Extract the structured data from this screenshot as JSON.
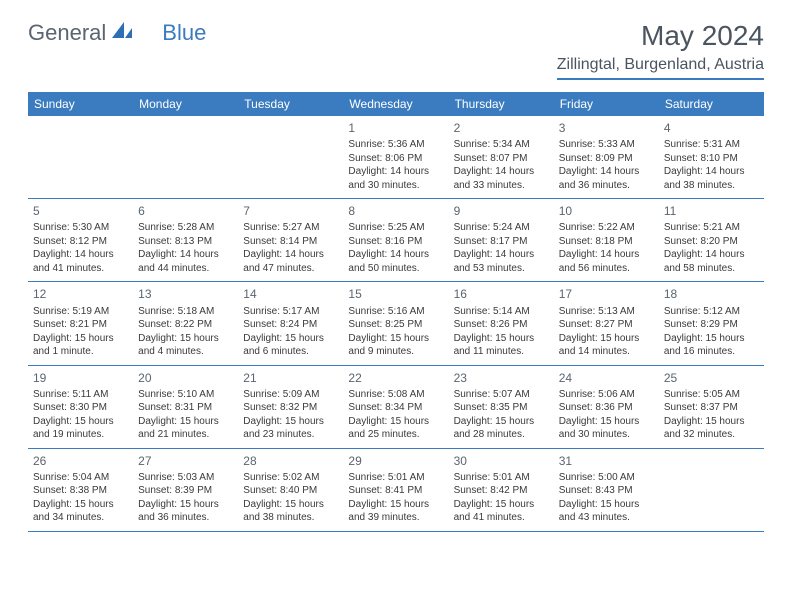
{
  "logo": {
    "text_general": "General",
    "text_blue": "Blue"
  },
  "title": "May 2024",
  "location": "Zillingtal, Burgenland, Austria",
  "colors": {
    "header_bg": "#3b7bbf",
    "text": "#4a5560"
  },
  "weekdays": [
    "Sunday",
    "Monday",
    "Tuesday",
    "Wednesday",
    "Thursday",
    "Friday",
    "Saturday"
  ],
  "weeks": [
    [
      {
        "n": "",
        "sr": "",
        "ss": "",
        "dl": ""
      },
      {
        "n": "",
        "sr": "",
        "ss": "",
        "dl": ""
      },
      {
        "n": "",
        "sr": "",
        "ss": "",
        "dl": ""
      },
      {
        "n": "1",
        "sr": "Sunrise: 5:36 AM",
        "ss": "Sunset: 8:06 PM",
        "dl": "Daylight: 14 hours and 30 minutes."
      },
      {
        "n": "2",
        "sr": "Sunrise: 5:34 AM",
        "ss": "Sunset: 8:07 PM",
        "dl": "Daylight: 14 hours and 33 minutes."
      },
      {
        "n": "3",
        "sr": "Sunrise: 5:33 AM",
        "ss": "Sunset: 8:09 PM",
        "dl": "Daylight: 14 hours and 36 minutes."
      },
      {
        "n": "4",
        "sr": "Sunrise: 5:31 AM",
        "ss": "Sunset: 8:10 PM",
        "dl": "Daylight: 14 hours and 38 minutes."
      }
    ],
    [
      {
        "n": "5",
        "sr": "Sunrise: 5:30 AM",
        "ss": "Sunset: 8:12 PM",
        "dl": "Daylight: 14 hours and 41 minutes."
      },
      {
        "n": "6",
        "sr": "Sunrise: 5:28 AM",
        "ss": "Sunset: 8:13 PM",
        "dl": "Daylight: 14 hours and 44 minutes."
      },
      {
        "n": "7",
        "sr": "Sunrise: 5:27 AM",
        "ss": "Sunset: 8:14 PM",
        "dl": "Daylight: 14 hours and 47 minutes."
      },
      {
        "n": "8",
        "sr": "Sunrise: 5:25 AM",
        "ss": "Sunset: 8:16 PM",
        "dl": "Daylight: 14 hours and 50 minutes."
      },
      {
        "n": "9",
        "sr": "Sunrise: 5:24 AM",
        "ss": "Sunset: 8:17 PM",
        "dl": "Daylight: 14 hours and 53 minutes."
      },
      {
        "n": "10",
        "sr": "Sunrise: 5:22 AM",
        "ss": "Sunset: 8:18 PM",
        "dl": "Daylight: 14 hours and 56 minutes."
      },
      {
        "n": "11",
        "sr": "Sunrise: 5:21 AM",
        "ss": "Sunset: 8:20 PM",
        "dl": "Daylight: 14 hours and 58 minutes."
      }
    ],
    [
      {
        "n": "12",
        "sr": "Sunrise: 5:19 AM",
        "ss": "Sunset: 8:21 PM",
        "dl": "Daylight: 15 hours and 1 minute."
      },
      {
        "n": "13",
        "sr": "Sunrise: 5:18 AM",
        "ss": "Sunset: 8:22 PM",
        "dl": "Daylight: 15 hours and 4 minutes."
      },
      {
        "n": "14",
        "sr": "Sunrise: 5:17 AM",
        "ss": "Sunset: 8:24 PM",
        "dl": "Daylight: 15 hours and 6 minutes."
      },
      {
        "n": "15",
        "sr": "Sunrise: 5:16 AM",
        "ss": "Sunset: 8:25 PM",
        "dl": "Daylight: 15 hours and 9 minutes."
      },
      {
        "n": "16",
        "sr": "Sunrise: 5:14 AM",
        "ss": "Sunset: 8:26 PM",
        "dl": "Daylight: 15 hours and 11 minutes."
      },
      {
        "n": "17",
        "sr": "Sunrise: 5:13 AM",
        "ss": "Sunset: 8:27 PM",
        "dl": "Daylight: 15 hours and 14 minutes."
      },
      {
        "n": "18",
        "sr": "Sunrise: 5:12 AM",
        "ss": "Sunset: 8:29 PM",
        "dl": "Daylight: 15 hours and 16 minutes."
      }
    ],
    [
      {
        "n": "19",
        "sr": "Sunrise: 5:11 AM",
        "ss": "Sunset: 8:30 PM",
        "dl": "Daylight: 15 hours and 19 minutes."
      },
      {
        "n": "20",
        "sr": "Sunrise: 5:10 AM",
        "ss": "Sunset: 8:31 PM",
        "dl": "Daylight: 15 hours and 21 minutes."
      },
      {
        "n": "21",
        "sr": "Sunrise: 5:09 AM",
        "ss": "Sunset: 8:32 PM",
        "dl": "Daylight: 15 hours and 23 minutes."
      },
      {
        "n": "22",
        "sr": "Sunrise: 5:08 AM",
        "ss": "Sunset: 8:34 PM",
        "dl": "Daylight: 15 hours and 25 minutes."
      },
      {
        "n": "23",
        "sr": "Sunrise: 5:07 AM",
        "ss": "Sunset: 8:35 PM",
        "dl": "Daylight: 15 hours and 28 minutes."
      },
      {
        "n": "24",
        "sr": "Sunrise: 5:06 AM",
        "ss": "Sunset: 8:36 PM",
        "dl": "Daylight: 15 hours and 30 minutes."
      },
      {
        "n": "25",
        "sr": "Sunrise: 5:05 AM",
        "ss": "Sunset: 8:37 PM",
        "dl": "Daylight: 15 hours and 32 minutes."
      }
    ],
    [
      {
        "n": "26",
        "sr": "Sunrise: 5:04 AM",
        "ss": "Sunset: 8:38 PM",
        "dl": "Daylight: 15 hours and 34 minutes."
      },
      {
        "n": "27",
        "sr": "Sunrise: 5:03 AM",
        "ss": "Sunset: 8:39 PM",
        "dl": "Daylight: 15 hours and 36 minutes."
      },
      {
        "n": "28",
        "sr": "Sunrise: 5:02 AM",
        "ss": "Sunset: 8:40 PM",
        "dl": "Daylight: 15 hours and 38 minutes."
      },
      {
        "n": "29",
        "sr": "Sunrise: 5:01 AM",
        "ss": "Sunset: 8:41 PM",
        "dl": "Daylight: 15 hours and 39 minutes."
      },
      {
        "n": "30",
        "sr": "Sunrise: 5:01 AM",
        "ss": "Sunset: 8:42 PM",
        "dl": "Daylight: 15 hours and 41 minutes."
      },
      {
        "n": "31",
        "sr": "Sunrise: 5:00 AM",
        "ss": "Sunset: 8:43 PM",
        "dl": "Daylight: 15 hours and 43 minutes."
      },
      {
        "n": "",
        "sr": "",
        "ss": "",
        "dl": ""
      }
    ]
  ]
}
